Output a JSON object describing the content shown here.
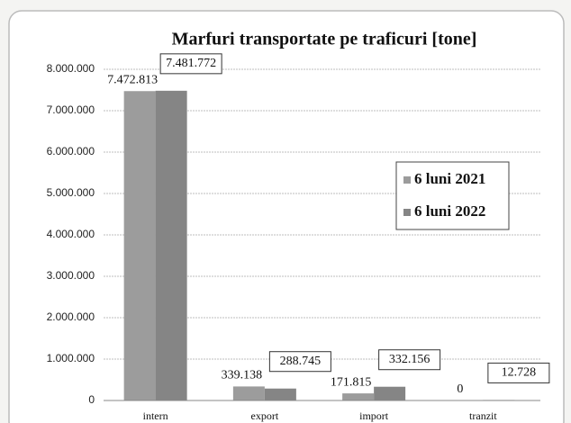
{
  "chart_data": {
    "type": "bar",
    "title": "Marfuri transportate pe traficuri [tone]",
    "categories": [
      "intern",
      "export",
      "import",
      "tranzit"
    ],
    "series": [
      {
        "name": "6 luni 2021",
        "color": "#9c9c9c",
        "values": [
          7472813,
          339138,
          171815,
          0
        ],
        "value_labels": [
          "7.472.813",
          "339.138",
          "171.815",
          "0"
        ]
      },
      {
        "name": "6 luni 2022",
        "color": "#858585",
        "values": [
          7481772,
          288745,
          332156,
          12728
        ],
        "value_labels": [
          "7.481.772",
          "288.745",
          "332.156",
          "12.728"
        ]
      }
    ],
    "ylim": [
      0,
      8000000
    ],
    "yticks": [
      0,
      {
        "value": 1000000,
        "label": "1.000.000"
      },
      {
        "value": 2000000,
        "label": "2.000.000"
      },
      {
        "value": 3000000,
        "label": "3.000.000"
      },
      {
        "value": 4000000,
        "label": "4.000.000"
      },
      {
        "value": 5000000,
        "label": "5.000.000"
      },
      {
        "value": 6000000,
        "label": "6.000.000"
      },
      {
        "value": 7000000,
        "label": "7.000.000"
      },
      {
        "value": 8000000,
        "label": "8.000.000"
      }
    ],
    "grid": true,
    "legend": "right"
  }
}
